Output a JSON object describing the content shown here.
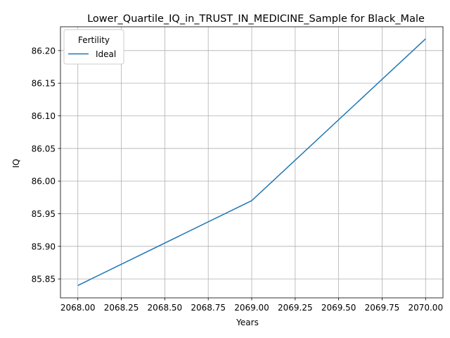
{
  "chart_data": {
    "type": "line",
    "title": "Lower_Quartile_IQ_in_TRUST_IN_MEDICINE_Sample for Black_Male",
    "xlabel": "Years",
    "ylabel": "IQ",
    "xlim": [
      2067.9,
      2070.1
    ],
    "ylim": [
      85.821,
      86.2365
    ],
    "x_ticks": [
      2068.0,
      2068.25,
      2068.5,
      2068.75,
      2069.0,
      2069.25,
      2069.5,
      2069.75,
      2070.0
    ],
    "x_tick_labels": [
      "2068.00",
      "2068.25",
      "2068.50",
      "2068.75",
      "2069.00",
      "2069.25",
      "2069.50",
      "2069.75",
      "2070.00"
    ],
    "y_ticks": [
      85.85,
      85.9,
      85.95,
      86.0,
      86.05,
      86.1,
      86.15,
      86.2
    ],
    "y_tick_labels": [
      "85.85",
      "85.90",
      "85.95",
      "86.00",
      "86.05",
      "86.10",
      "86.15",
      "86.20"
    ],
    "grid": true,
    "legend": {
      "title": "Fertility",
      "placement": "top-left"
    },
    "series": [
      {
        "name": "Ideal",
        "color": "#1f77b4",
        "x": [
          2068,
          2069,
          2070
        ],
        "y": [
          85.84,
          85.97,
          86.218
        ]
      }
    ]
  }
}
